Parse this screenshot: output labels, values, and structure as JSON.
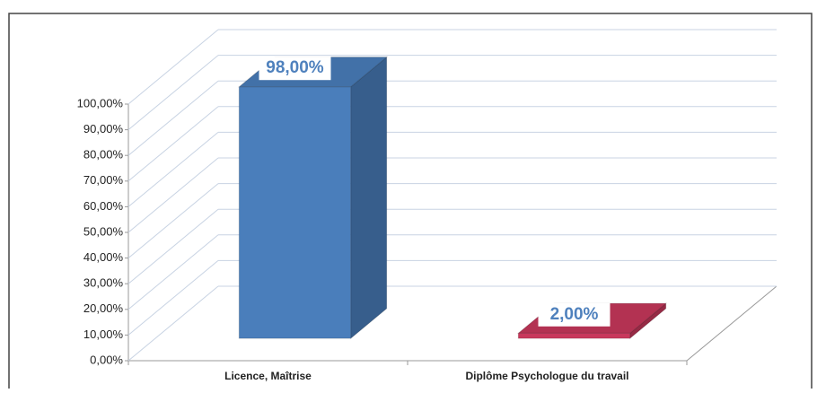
{
  "chart_data": {
    "type": "bar3d",
    "categories": [
      "Licence, Maîtrise",
      "Diplôme Psychologue du travail"
    ],
    "values": [
      98,
      2
    ],
    "value_labels": [
      "98,00%",
      "2,00%"
    ],
    "colors": [
      "#4a7ebb",
      "#c8385c"
    ],
    "ylim": [
      0,
      100
    ],
    "yticks": [
      {
        "value": 0,
        "label": "0,00%"
      },
      {
        "value": 10,
        "label": "10,00%"
      },
      {
        "value": 20,
        "label": "20,00%"
      },
      {
        "value": 30,
        "label": "30,00%"
      },
      {
        "value": 40,
        "label": "40,00%"
      },
      {
        "value": 50,
        "label": "50,00%"
      },
      {
        "value": 60,
        "label": "60,00%"
      },
      {
        "value": 70,
        "label": "70,00%"
      },
      {
        "value": 80,
        "label": "80,00%"
      },
      {
        "value": 90,
        "label": "90,00%"
      },
      {
        "value": 100,
        "label": "100,00%"
      }
    ],
    "grid": true
  }
}
